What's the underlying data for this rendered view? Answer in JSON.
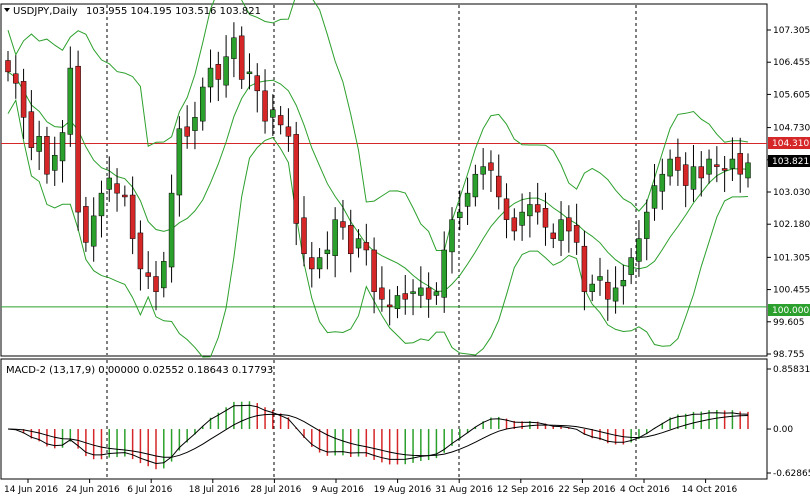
{
  "header": {
    "symbol": "USDJPY,Daily",
    "ohlc": "103.955 104.195 103.516 103.821",
    "indicator": "MACD-2 (13,17,9) 0.00000 0.02552 0.18643 0.17793"
  },
  "colors": {
    "bull": "#2ca02c",
    "bear": "#d62728",
    "band": "#2ca02c",
    "resistance": "#d62728",
    "support": "#2ca02c",
    "macd_up": "#2ca02c",
    "macd_down": "#d62728"
  },
  "price_axis": {
    "ticks": [
      "107.305",
      "106.455",
      "105.605",
      "104.730",
      "103.880",
      "103.030",
      "102.180",
      "101.305",
      "100.455",
      "99.605",
      "98.755"
    ],
    "current": "103.821",
    "resistance": "104.310",
    "support": "100.000"
  },
  "macd_axis": {
    "ticks": [
      "0.85831",
      "0.00",
      "-0.62865"
    ]
  },
  "time_axis": {
    "labels": [
      "14 Jun 2016",
      "24 Jun 2016",
      "6 Jul 2016",
      "18 Jul 2016",
      "28 Jul 2016",
      "9 Aug 2016",
      "19 Aug 2016",
      "31 Aug 2016",
      "12 Sep 2016",
      "22 Sep 2016",
      "4 Oct 2016",
      "14 Oct 2016"
    ]
  },
  "chart_data": {
    "type": "candlestick",
    "close": [
      106.2,
      105.9,
      105.0,
      104.2,
      104.5,
      103.5,
      104.0,
      104.6,
      106.3,
      102.5,
      101.7,
      102.4,
      103.0,
      103.4,
      103.0,
      102.9,
      101.8,
      101.0,
      100.8,
      100.4,
      101.2,
      103.0,
      104.7,
      104.5,
      105.0,
      105.8,
      106.3,
      106.0,
      106.6,
      107.1,
      106.0,
      106.2,
      105.7,
      104.9,
      105.2,
      104.8,
      104.5,
      102.2,
      101.4,
      101.0,
      101.3,
      101.5,
      102.3,
      102.1,
      101.4,
      101.8,
      101.5,
      100.4,
      100.2,
      100.0,
      100.3,
      100.2,
      100.4,
      100.5,
      100.2,
      100.4,
      101.5,
      102.3,
      102.5,
      103.0,
      103.5,
      103.7,
      103.6,
      102.9,
      102.3,
      102.0,
      102.5,
      102.7,
      102.5,
      102.1,
      101.8,
      102.3,
      102.0,
      101.7,
      100.4,
      100.6,
      100.8,
      100.2,
      100.5,
      100.7,
      101.3,
      101.8,
      102.5,
      103.2,
      103.5,
      103.9,
      103.6,
      103.2,
      103.7,
      103.4,
      103.9,
      103.7,
      103.6,
      103.9,
      103.5,
      103.8
    ],
    "current_price": 103.821,
    "resistance_level": 104.31,
    "support_level": 100.0,
    "macd_range": [
      -0.62865,
      0.85831
    ]
  }
}
